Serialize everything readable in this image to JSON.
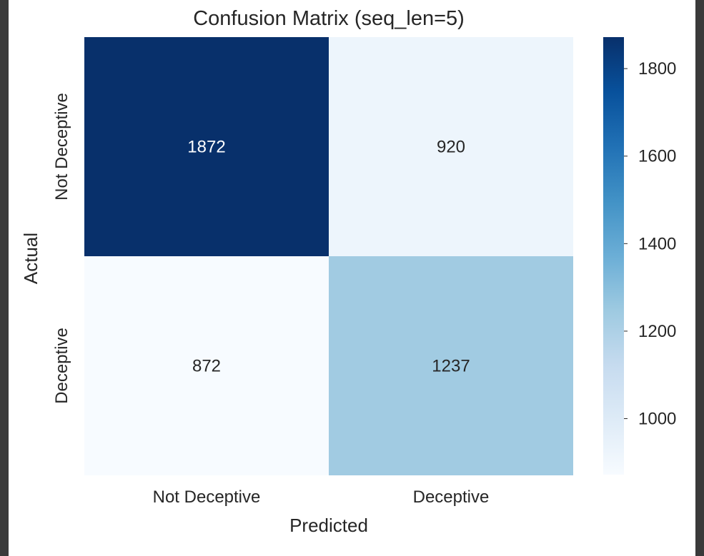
{
  "chart_data": {
    "type": "heatmap",
    "title": "Confusion Matrix (seq_len=5)",
    "xlabel": "Predicted",
    "ylabel": "Actual",
    "x_categories": [
      "Not Deceptive",
      "Deceptive"
    ],
    "y_categories": [
      "Not Deceptive",
      "Deceptive"
    ],
    "values": [
      [
        1872,
        920
      ],
      [
        872,
        1237
      ]
    ],
    "colormap": "Blues",
    "color_range": [
      872,
      1872
    ],
    "colorbar_ticks": [
      1000,
      1200,
      1400,
      1600,
      1800
    ],
    "annotations": true,
    "grid": false,
    "legend_position": "right colorbar"
  },
  "colors": {
    "cell_max": "#08306b",
    "cell_min": "#f7fbff",
    "annotation_light": "#ffffff",
    "annotation_dark": "#262626",
    "frame": "#3a3a3a"
  }
}
